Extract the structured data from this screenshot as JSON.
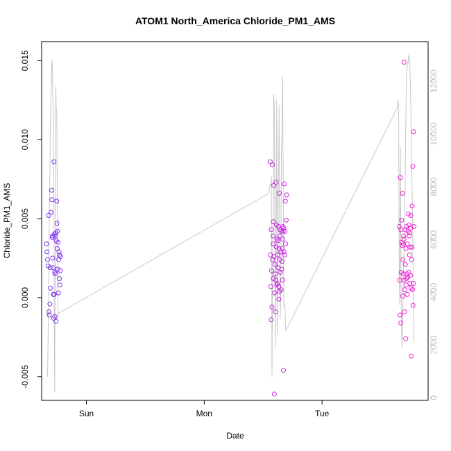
{
  "chart_data": {
    "type": "scatter",
    "title": "ATOM1 North_America Chloride_PM1_AMS",
    "xlabel": "Date",
    "ylabel": "Chloride_PM1_AMS",
    "ylim": [
      -0.0065,
      0.0162
    ],
    "y2lim": [
      -100,
      13500
    ],
    "xlim": [
      -0.38,
      2.9
    ],
    "x_ticks": [
      {
        "value": 0,
        "label": "Sun"
      },
      {
        "value": 1,
        "label": "Mon"
      },
      {
        "value": 2,
        "label": "Tue"
      }
    ],
    "y_ticks": [
      {
        "value": -0.005,
        "label": "-0.005"
      },
      {
        "value": 0.0,
        "label": "0.000"
      },
      {
        "value": 0.005,
        "label": "0.005"
      },
      {
        "value": 0.01,
        "label": "0.010"
      },
      {
        "value": 0.015,
        "label": "0.015"
      }
    ],
    "y2_ticks": [
      {
        "value": 0,
        "label": "0"
      },
      {
        "value": 2000,
        "label": "2000"
      },
      {
        "value": 4000,
        "label": "4000"
      },
      {
        "value": 6000,
        "label": "6000"
      },
      {
        "value": 8000,
        "label": "8000"
      },
      {
        "value": 10000,
        "label": "10000"
      },
      {
        "value": 12000,
        "label": "12000"
      }
    ],
    "grid": false,
    "legend": "none",
    "colors": {
      "start": "#7d36f0",
      "end": "#ee1fd2",
      "line": "#c8c8c8"
    },
    "series": [
      {
        "type": "scatter",
        "points": [
          [
            -0.34,
            0.0034
          ],
          [
            -0.335,
            0.0029
          ],
          [
            -0.33,
            0.0024
          ],
          [
            -0.325,
            0.002
          ],
          [
            -0.32,
            0.0052
          ],
          [
            -0.315,
            -0.0011
          ],
          [
            -0.31,
            -0.0004
          ],
          [
            -0.305,
            0.0006
          ],
          [
            -0.3,
            0.0054
          ],
          [
            -0.295,
            0.0068
          ],
          [
            -0.292,
            0.0062
          ],
          [
            -0.29,
            0.0038
          ],
          [
            -0.285,
            0.0025
          ],
          [
            -0.282,
            0.0019
          ],
          [
            -0.28,
            0.0002
          ],
          [
            -0.278,
            -0.0013
          ],
          [
            -0.275,
            0.0086
          ],
          [
            -0.272,
            0.004
          ],
          [
            -0.27,
            0.0016
          ],
          [
            -0.268,
            -0.0012
          ],
          [
            -0.265,
            0.0039
          ],
          [
            -0.262,
            0.0015
          ],
          [
            -0.26,
            0.0041
          ],
          [
            -0.258,
            -0.0015
          ],
          [
            -0.255,
            0.0036
          ],
          [
            -0.252,
            0.0061
          ],
          [
            -0.25,
            0.0047
          ],
          [
            -0.248,
            0.0031
          ],
          [
            -0.245,
            0.0042
          ],
          [
            -0.242,
            0.0018
          ],
          [
            -0.24,
            0.0035
          ],
          [
            -0.238,
            0.0003
          ],
          [
            -0.235,
            0.0024
          ],
          [
            -0.232,
            0.0029
          ],
          [
            -0.23,
            0.0012
          ],
          [
            -0.228,
            0.0027
          ],
          [
            -0.225,
            0.0008
          ],
          [
            -0.222,
            0.0017
          ],
          [
            -0.22,
            0.0026
          ],
          [
            -0.318,
            -0.0009
          ],
          [
            -0.308,
            0.0019
          ],
          [
            -0.288,
            0.0039
          ],
          [
            -0.274,
            0.0002
          ],
          [
            1.56,
            0.0086
          ],
          [
            1.562,
            0.0027
          ],
          [
            1.565,
            0.0007
          ],
          [
            1.568,
            -0.0014
          ],
          [
            1.57,
            0.0043
          ],
          [
            1.572,
            0.0017
          ],
          [
            1.575,
            -0.0006
          ],
          [
            1.578,
            0.0084
          ],
          [
            1.58,
            0.0024
          ],
          [
            1.583,
            0.0034
          ],
          [
            1.585,
            0.0039
          ],
          [
            1.587,
            0.0012
          ],
          [
            1.59,
            0.0071
          ],
          [
            1.592,
            0.0026
          ],
          [
            1.595,
            -0.0061
          ],
          [
            1.598,
            0.0003
          ],
          [
            1.6,
            0.0021
          ],
          [
            1.603,
            0.0015
          ],
          [
            1.605,
            -0.0009
          ],
          [
            1.607,
            0.0011
          ],
          [
            1.61,
            0.0073
          ],
          [
            1.612,
            0.0032
          ],
          [
            1.615,
            0.0008
          ],
          [
            1.617,
            0.0037
          ],
          [
            1.62,
            0.0009
          ],
          [
            1.622,
            0.0027
          ],
          [
            1.625,
            0.0036
          ],
          [
            1.627,
            0.0019
          ],
          [
            1.63,
            0.0045
          ],
          [
            1.632,
            0.0007
          ],
          [
            1.635,
            0.0031
          ],
          [
            1.637,
            0.0066
          ],
          [
            1.64,
            0.0004
          ],
          [
            1.642,
            0.0024
          ],
          [
            1.645,
            0.0043
          ],
          [
            1.647,
            0.0016
          ],
          [
            1.65,
            0.0029
          ],
          [
            1.652,
            0.0005
          ],
          [
            1.655,
            0.0042
          ],
          [
            1.657,
            0.0018
          ],
          [
            1.66,
            0.0023
          ],
          [
            1.662,
            0.0031
          ],
          [
            1.665,
            0.0011
          ],
          [
            1.667,
            0.0037
          ],
          [
            1.67,
            0.0042
          ],
          [
            1.672,
            -0.0046
          ],
          [
            1.675,
            0.0044
          ],
          [
            1.677,
            0.0029
          ],
          [
            1.68,
            0.0072
          ],
          [
            1.682,
            0.0027
          ],
          [
            1.685,
            0.0042
          ],
          [
            1.688,
            0.0061
          ],
          [
            1.69,
            0.0034
          ],
          [
            1.695,
            0.0049
          ],
          [
            1.7,
            0.0065
          ],
          [
            1.587,
            0.0048
          ],
          [
            1.613,
            0.0046
          ],
          [
            1.643,
            0.0039
          ],
          [
            1.668,
            0.0045
          ],
          [
            1.633,
            -0.0001
          ],
          [
            2.655,
            0.0045
          ],
          [
            2.66,
            0.0011
          ],
          [
            2.662,
            -0.0011
          ],
          [
            2.665,
            0.0076
          ],
          [
            2.668,
            -0.0016
          ],
          [
            2.67,
            0.0043
          ],
          [
            2.672,
            0.0016
          ],
          [
            2.675,
            0.0049
          ],
          [
            2.677,
            0.0035
          ],
          [
            2.68,
            0.0033
          ],
          [
            2.682,
            0.0066
          ],
          [
            2.685,
            0.0001
          ],
          [
            2.687,
            0.0024
          ],
          [
            2.69,
            0.0015
          ],
          [
            2.692,
            0.0039
          ],
          [
            2.695,
            0.0037
          ],
          [
            2.697,
            0.0149
          ],
          [
            2.7,
            -0.0009
          ],
          [
            2.702,
            0.0005
          ],
          [
            2.705,
            0.0043
          ],
          [
            2.707,
            0.0021
          ],
          [
            2.71,
            -0.0026
          ],
          [
            2.712,
            0.0031
          ],
          [
            2.715,
            0.0008
          ],
          [
            2.717,
            0.0045
          ],
          [
            2.72,
            0.0015
          ],
          [
            2.722,
            0.0002
          ],
          [
            2.725,
            0.0034
          ],
          [
            2.727,
            0.0013
          ],
          [
            2.73,
            0.0042
          ],
          [
            2.732,
            0.0053
          ],
          [
            2.735,
            0.0016
          ],
          [
            2.737,
            0.0046
          ],
          [
            2.74,
            0.0039
          ],
          [
            2.742,
            0.0027
          ],
          [
            2.745,
            0.0009
          ],
          [
            2.747,
            0.0032
          ],
          [
            2.75,
            0.0014
          ],
          [
            2.752,
            0.0044
          ],
          [
            2.755,
            0.0006
          ],
          [
            2.757,
            -0.0037
          ],
          [
            2.76,
            0.0024
          ],
          [
            2.762,
            0.0032
          ],
          [
            2.765,
            0.0058
          ],
          [
            2.767,
            0.0005
          ],
          [
            2.77,
            0.0083
          ],
          [
            2.772,
            -0.0005
          ],
          [
            2.775,
            0.0009
          ],
          [
            2.777,
            0.0105
          ],
          [
            2.78,
            0.0045
          ],
          [
            2.715,
            0.0012
          ],
          [
            2.695,
            0.0011
          ],
          [
            2.742,
            0.0041
          ],
          [
            2.752,
            0.0052
          ],
          [
            2.69,
            0.0034
          ]
        ]
      },
      {
        "type": "line",
        "axis": "right",
        "points": [
          [
            -0.33,
            800
          ],
          [
            -0.325,
            2200
          ],
          [
            -0.32,
            4500
          ],
          [
            -0.315,
            6800
          ],
          [
            -0.31,
            8500
          ],
          [
            -0.305,
            10500
          ],
          [
            -0.3,
            11500
          ],
          [
            -0.295,
            12500
          ],
          [
            -0.29,
            12800
          ],
          [
            -0.285,
            11500
          ],
          [
            -0.28,
            10500
          ],
          [
            -0.275,
            6500
          ],
          [
            -0.272,
            3000
          ],
          [
            -0.27,
            200
          ],
          [
            -0.268,
            1500
          ],
          [
            -0.265,
            4500
          ],
          [
            -0.262,
            7500
          ],
          [
            -0.26,
            11800
          ],
          [
            -0.258,
            11500
          ],
          [
            -0.255,
            10800
          ],
          [
            -0.252,
            10900
          ],
          [
            -0.25,
            10000
          ],
          [
            -0.245,
            5000
          ],
          [
            -0.24,
            3000
          ],
          [
            -0.238,
            3200
          ],
          [
            1.55,
            7750
          ],
          [
            1.555,
            8000
          ],
          [
            1.56,
            8100
          ],
          [
            1.565,
            8050
          ],
          [
            1.57,
            8400
          ],
          [
            1.575,
            800
          ],
          [
            1.58,
            4500
          ],
          [
            1.585,
            7000
          ],
          [
            1.59,
            11500
          ],
          [
            1.595,
            11000
          ],
          [
            1.6,
            5500
          ],
          [
            1.605,
            1900
          ],
          [
            1.61,
            6500
          ],
          [
            1.615,
            11300
          ],
          [
            1.62,
            2400
          ],
          [
            1.625,
            6000
          ],
          [
            1.63,
            8000
          ],
          [
            1.635,
            11100
          ],
          [
            1.64,
            5500
          ],
          [
            1.645,
            3000
          ],
          [
            1.65,
            4500
          ],
          [
            1.655,
            9500
          ],
          [
            1.66,
            10000
          ],
          [
            1.665,
            12200
          ],
          [
            1.67,
            8500
          ],
          [
            1.675,
            3500
          ],
          [
            1.68,
            3500
          ],
          [
            1.685,
            3500
          ],
          [
            1.69,
            2600
          ],
          [
            1.695,
            2550
          ],
          [
            2.64,
            11000
          ],
          [
            2.645,
            11300
          ],
          [
            2.65,
            10800
          ],
          [
            2.655,
            4500
          ],
          [
            2.66,
            3500
          ],
          [
            2.665,
            9500
          ],
          [
            2.67,
            4600
          ],
          [
            2.675,
            2500
          ],
          [
            2.68,
            1900
          ],
          [
            2.685,
            3000
          ],
          [
            2.69,
            4500
          ],
          [
            2.695,
            5500
          ],
          [
            2.7,
            6800
          ],
          [
            2.705,
            8000
          ],
          [
            2.71,
            10000
          ],
          [
            2.715,
            12000
          ],
          [
            2.72,
            12500
          ],
          [
            2.725,
            12600
          ],
          [
            2.73,
            12700
          ],
          [
            2.735,
            13000
          ],
          [
            2.74,
            12900
          ],
          [
            2.745,
            12600
          ],
          [
            2.75,
            11800
          ],
          [
            2.755,
            10500
          ],
          [
            2.76,
            9000
          ],
          [
            2.765,
            7500
          ],
          [
            2.77,
            6000
          ],
          [
            2.775,
            3500
          ],
          [
            2.78,
            2100
          ]
        ]
      }
    ]
  }
}
